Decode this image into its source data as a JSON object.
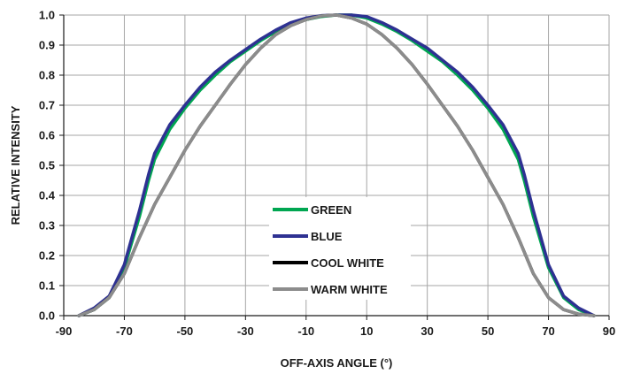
{
  "chart_data": {
    "type": "line",
    "title": "",
    "xlabel": "OFF-AXIS ANGLE (°)",
    "ylabel": "RELATIVE INTENSITY",
    "xlim": [
      -90,
      90
    ],
    "ylim": [
      0,
      1
    ],
    "x_ticks": [
      "-90",
      "-70",
      "-50",
      "-30",
      "-10",
      "10",
      "30",
      "50",
      "70",
      "90"
    ],
    "y_ticks": [
      "0.0",
      "0.1",
      "0.2",
      "0.3",
      "0.4",
      "0.5",
      "0.6",
      "0.7",
      "0.8",
      "0.9",
      "1.0"
    ],
    "grid": true,
    "legend_position": "lower-center",
    "series": [
      {
        "name": "GREEN",
        "color": "#00a651",
        "x": [
          -85,
          -80,
          -75,
          -70,
          -65,
          -62,
          -60,
          -55,
          -50,
          -45,
          -40,
          -35,
          -30,
          -25,
          -20,
          -15,
          -10,
          -5,
          0,
          5,
          10,
          15,
          20,
          25,
          30,
          35,
          40,
          45,
          50,
          55,
          60,
          62,
          65,
          70,
          75,
          80,
          85
        ],
        "y": [
          0.0,
          0.02,
          0.06,
          0.16,
          0.33,
          0.45,
          0.52,
          0.62,
          0.69,
          0.75,
          0.8,
          0.845,
          0.88,
          0.915,
          0.945,
          0.97,
          0.985,
          0.995,
          1.0,
          1.0,
          0.99,
          0.97,
          0.945,
          0.915,
          0.88,
          0.845,
          0.8,
          0.75,
          0.69,
          0.62,
          0.52,
          0.45,
          0.33,
          0.16,
          0.06,
          0.02,
          0.0
        ]
      },
      {
        "name": "BLUE",
        "color": "#2e3192",
        "x": [
          -85,
          -80,
          -75,
          -70,
          -65,
          -62,
          -60,
          -55,
          -50,
          -45,
          -40,
          -35,
          -30,
          -25,
          -20,
          -15,
          -10,
          -5,
          0,
          5,
          10,
          15,
          20,
          25,
          30,
          35,
          40,
          45,
          50,
          55,
          60,
          62,
          65,
          70,
          75,
          80,
          85
        ],
        "y": [
          0.0,
          0.025,
          0.065,
          0.17,
          0.35,
          0.47,
          0.54,
          0.635,
          0.7,
          0.76,
          0.81,
          0.85,
          0.885,
          0.92,
          0.95,
          0.975,
          0.99,
          0.998,
          1.0,
          1.0,
          0.995,
          0.975,
          0.95,
          0.92,
          0.89,
          0.85,
          0.81,
          0.76,
          0.7,
          0.635,
          0.54,
          0.47,
          0.35,
          0.17,
          0.065,
          0.025,
          0.0
        ]
      },
      {
        "name": "COOL WHITE",
        "color": "#000000",
        "x": [
          -85,
          -80,
          -75,
          -70,
          -65,
          -60,
          -55,
          -50,
          -45,
          -40,
          -35,
          -30,
          -25,
          -20,
          -15,
          -10,
          -5,
          0,
          5,
          10,
          15,
          20,
          25,
          30,
          35,
          40,
          45,
          50,
          55,
          60,
          65,
          70,
          75,
          80,
          85
        ],
        "y": [
          0.0,
          0.02,
          0.06,
          0.14,
          0.26,
          0.37,
          0.46,
          0.55,
          0.63,
          0.7,
          0.77,
          0.835,
          0.89,
          0.935,
          0.965,
          0.985,
          0.997,
          1.0,
          0.99,
          0.97,
          0.935,
          0.89,
          0.835,
          0.77,
          0.7,
          0.63,
          0.55,
          0.46,
          0.37,
          0.26,
          0.14,
          0.06,
          0.02,
          0.005,
          0.0
        ]
      },
      {
        "name": "WARM WHITE",
        "color": "#8c8c8c",
        "x": [
          -85,
          -80,
          -75,
          -70,
          -65,
          -60,
          -55,
          -50,
          -45,
          -40,
          -35,
          -30,
          -25,
          -20,
          -15,
          -10,
          -5,
          0,
          5,
          10,
          15,
          20,
          25,
          30,
          35,
          40,
          45,
          50,
          55,
          60,
          65,
          70,
          75,
          80,
          85
        ],
        "y": [
          0.0,
          0.02,
          0.06,
          0.14,
          0.26,
          0.37,
          0.46,
          0.55,
          0.63,
          0.7,
          0.77,
          0.835,
          0.89,
          0.935,
          0.965,
          0.985,
          0.997,
          1.0,
          0.99,
          0.97,
          0.935,
          0.89,
          0.835,
          0.77,
          0.7,
          0.63,
          0.55,
          0.46,
          0.37,
          0.26,
          0.14,
          0.06,
          0.02,
          0.005,
          0.0
        ]
      }
    ]
  }
}
